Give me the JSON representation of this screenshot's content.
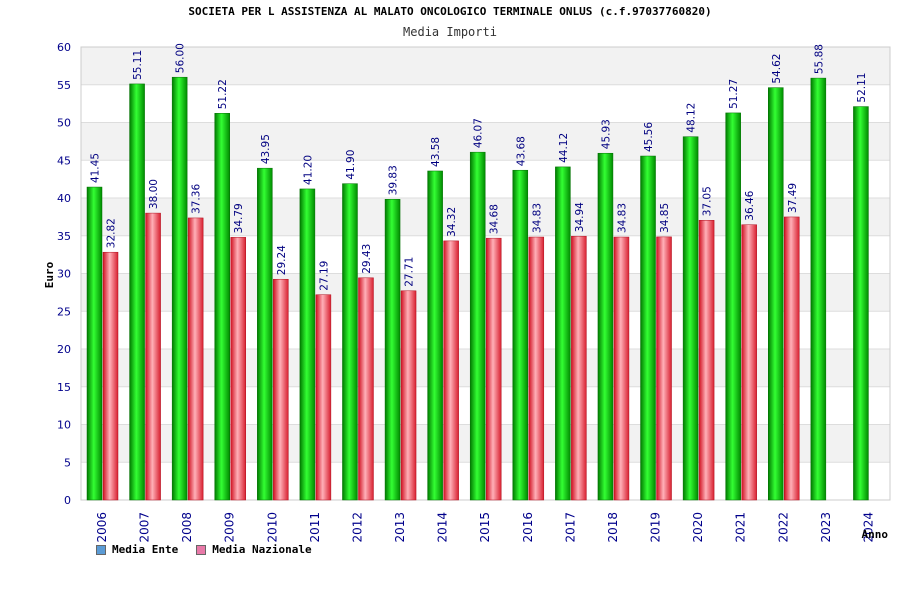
{
  "header": {
    "title": "SOCIETA PER L ASSISTENZA AL MALATO ONCOLOGICO TERMINALE ONLUS (c.f.97037760820)",
    "subtitle": "Media Importi"
  },
  "legend": {
    "items": [
      {
        "label": "Media Ente",
        "color": "#5b9bd5"
      },
      {
        "label": "Media Nazionale",
        "color": "#e879a8"
      }
    ]
  },
  "colors": {
    "ente_bar": "#00b000",
    "nazionale_bar": "#e0303a",
    "axis_text": "#00008b",
    "band": "#f2f2f2"
  },
  "chart_data": {
    "type": "bar",
    "title": "SOCIETA PER L ASSISTENZA AL MALATO ONCOLOGICO TERMINALE ONLUS (c.f.97037760820)",
    "subtitle": "Media Importi",
    "xlabel": "Anno",
    "ylabel": "Euro",
    "ylim": [
      0,
      60
    ],
    "yticks": [
      0,
      5,
      10,
      15,
      20,
      25,
      30,
      35,
      40,
      45,
      50,
      55,
      60
    ],
    "grid": true,
    "legend_position": "bottom-left",
    "categories": [
      "2006",
      "2007",
      "2008",
      "2009",
      "2010",
      "2011",
      "2012",
      "2013",
      "2014",
      "2015",
      "2016",
      "2017",
      "2018",
      "2019",
      "2020",
      "2021",
      "2022",
      "2023",
      "2024"
    ],
    "series": [
      {
        "name": "Media Ente",
        "values": [
          41.45,
          55.11,
          56.0,
          51.22,
          43.95,
          41.2,
          41.9,
          39.83,
          43.58,
          46.07,
          43.68,
          44.12,
          45.93,
          45.56,
          48.12,
          51.27,
          54.62,
          55.88,
          52.11
        ],
        "labels": [
          "41.45",
          "55.11",
          "56.00",
          "51.22",
          "43.95",
          "41.20",
          "41.90",
          "39.83",
          "43.58",
          "46.07",
          "43.68",
          "44.12",
          "45.93",
          "45.56",
          "48.12",
          "51.27",
          "54.62",
          "55.88",
          "52.11"
        ]
      },
      {
        "name": "Media Nazionale",
        "values": [
          32.82,
          38.0,
          37.36,
          34.79,
          29.24,
          27.19,
          29.43,
          27.71,
          34.32,
          34.68,
          34.83,
          34.94,
          34.83,
          34.85,
          37.05,
          36.46,
          37.49,
          null,
          null
        ],
        "labels": [
          "32.82",
          "38.00",
          "37.36",
          "34.79",
          "29.24",
          "27.19",
          "29.43",
          "27.71",
          "34.32",
          "34.68",
          "34.83",
          "34.94",
          "34.83",
          "34.85",
          "37.05",
          "36.46",
          "37.49",
          null,
          null
        ]
      }
    ]
  }
}
